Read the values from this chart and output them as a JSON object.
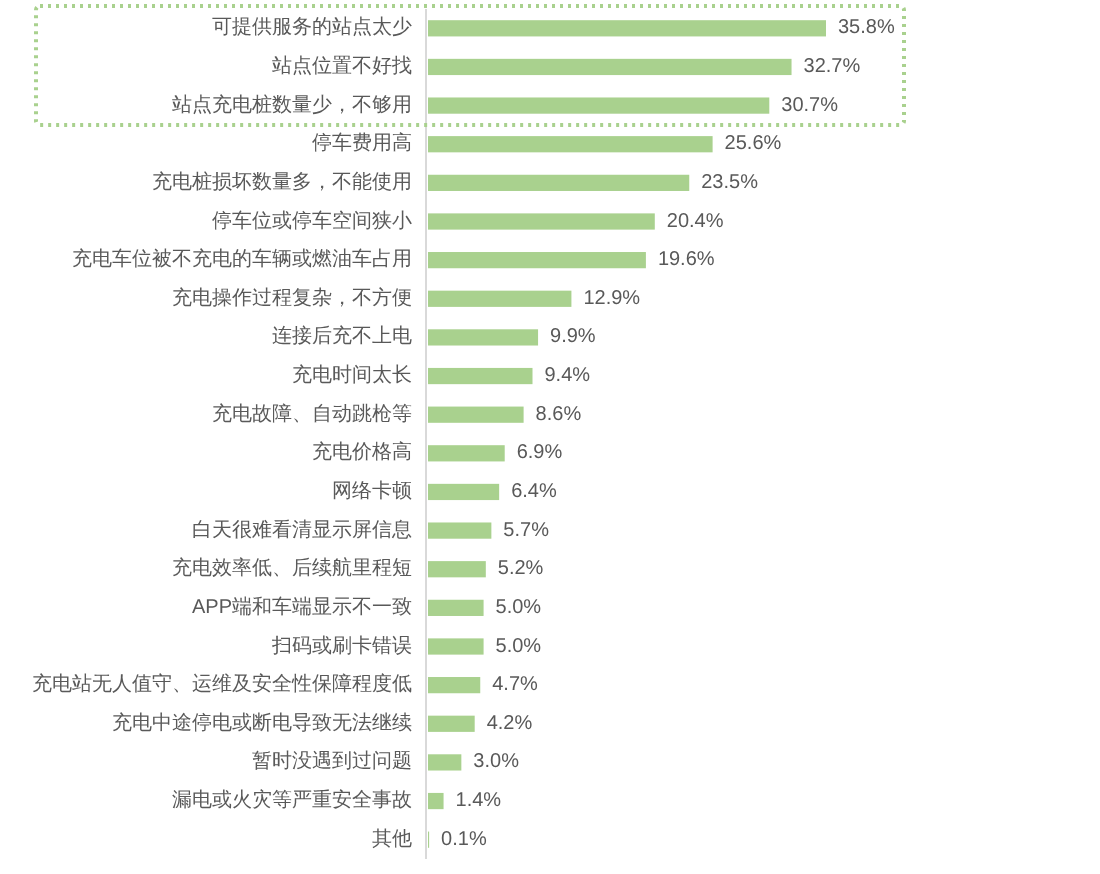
{
  "chart_data": {
    "type": "bar",
    "orientation": "horizontal",
    "categories": [
      "可提供服务的站点太少",
      "站点位置不好找",
      "站点充电桩数量少，不够用",
      "停车费用高",
      "充电桩损坏数量多，不能使用",
      "停车位或停车空间狭小",
      "充电车位被不充电的车辆或燃油车占用",
      "充电操作过程复杂，不方便",
      "连接后充不上电",
      "充电时间太长",
      "充电故障、自动跳枪等",
      "充电价格高",
      "网络卡顿",
      "白天很难看清显示屏信息",
      "充电效率低、后续航里程短",
      "APP端和车端显示不一致",
      "扫码或刷卡错误",
      "充电站无人值守、运维及安全性保障程度低",
      "充电中途停电或断电导致无法继续",
      "暂时没遇到过问题",
      "漏电或火灾等严重安全事故",
      "其他"
    ],
    "values": [
      35.8,
      32.7,
      30.7,
      25.6,
      23.5,
      20.4,
      19.6,
      12.9,
      9.9,
      9.4,
      8.6,
      6.9,
      6.4,
      5.7,
      5.2,
      5.0,
      5.0,
      4.7,
      4.2,
      3.0,
      1.4,
      0.1
    ],
    "color": "#a9d18e",
    "value_labels": [
      "35.8%",
      "32.7%",
      "30.7%",
      "25.6%",
      "23.5%",
      "20.4%",
      "19.6%",
      "12.9%",
      "9.9%",
      "9.4%",
      "8.6%",
      "6.9%",
      "6.4%",
      "5.7%",
      "5.2%",
      "5.0%",
      "5.0%",
      "4.7%",
      "4.2%",
      "3.0%",
      "1.4%",
      "0.1%"
    ]
  }
}
